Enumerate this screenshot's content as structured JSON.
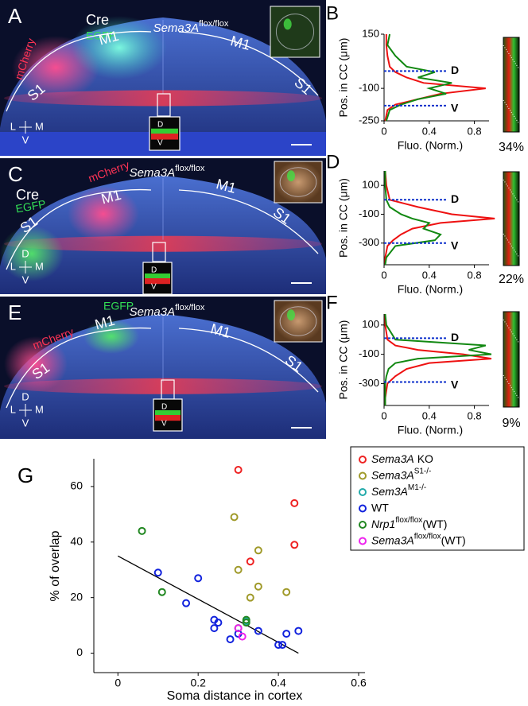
{
  "micrographs": [
    {
      "letter": "A",
      "title": "Sema3A",
      "title_sup": "flox/flox",
      "labels": [
        {
          "text": "mCherry",
          "color": "#ff3355"
        },
        {
          "text": "Cre",
          "color": "#ffffff"
        },
        {
          "text": "EGFP",
          "color": "#33dd55"
        },
        {
          "text": "S1",
          "color": "#ffffff"
        },
        {
          "text": "M1",
          "color": "#ffffff"
        },
        {
          "text": "M1",
          "color": "#ffffff"
        },
        {
          "text": "S1",
          "color": "#ffffff"
        }
      ],
      "inset": [
        "D",
        "V"
      ],
      "orientation": [
        "L",
        "M",
        "V"
      ]
    },
    {
      "letter": "C",
      "title": "Sema3A",
      "title_sup": "flox/flox",
      "labels": [
        {
          "text": "Cre",
          "color": "#ffffff"
        },
        {
          "text": "EGFP",
          "color": "#33dd55"
        },
        {
          "text": "S1",
          "color": "#ffffff"
        },
        {
          "text": "mCherry",
          "color": "#ff3355"
        },
        {
          "text": "M1",
          "color": "#ffffff"
        },
        {
          "text": "M1",
          "color": "#ffffff"
        },
        {
          "text": "S1",
          "color": "#ffffff"
        }
      ],
      "inset": [
        "D",
        "V"
      ],
      "orientation": [
        "D",
        "L",
        "M",
        "V"
      ]
    },
    {
      "letter": "E",
      "title": "Sema3A",
      "title_sup": "flox/flox",
      "labels": [
        {
          "text": "EGFP",
          "color": "#33dd55"
        },
        {
          "text": "M1",
          "color": "#ffffff"
        },
        {
          "text": "mCherry",
          "color": "#ff3355"
        },
        {
          "text": "S1",
          "color": "#ffffff"
        },
        {
          "text": "M1",
          "color": "#ffffff"
        },
        {
          "text": "S1",
          "color": "#ffffff"
        }
      ],
      "inset": [
        "D",
        "V"
      ],
      "orientation": [
        "D",
        "L",
        "M",
        "V"
      ]
    }
  ],
  "chart_data": [
    {
      "type": "profile",
      "letter": "B",
      "y_label": "Pos. in CC (μm)",
      "x_label": "Fluo. (Norm.)",
      "strip_label": "34%",
      "xlim": [
        0,
        1
      ],
      "xticks": [
        0,
        0.4,
        0.8
      ],
      "ylim": [
        -250,
        150
      ],
      "yticks": [
        150,
        -100,
        -250
      ],
      "positions": [
        150,
        100,
        50,
        0,
        -25,
        -50,
        -75,
        -100,
        -125,
        -150,
        -175,
        -200,
        -250
      ],
      "series": [
        {
          "color": "#ee1111",
          "values": [
            0.02,
            0.02,
            0.03,
            0.05,
            0.1,
            0.2,
            0.35,
            0.9,
            0.5,
            0.3,
            0.1,
            0.03,
            0.01
          ]
        },
        {
          "color": "#118811",
          "values": [
            0.05,
            0.03,
            0.1,
            0.2,
            0.45,
            0.3,
            0.6,
            0.4,
            0.55,
            0.3,
            0.15,
            0.05,
            0.02
          ]
        }
      ],
      "reference_lines": [
        {
          "label": "D",
          "value": -20
        },
        {
          "label": "V",
          "value": -180
        }
      ]
    },
    {
      "type": "profile",
      "letter": "D",
      "y_label": "Pos. in CC (μm)",
      "x_label": "Fluo. (Norm.)",
      "strip_label": "22%",
      "xlim": [
        0,
        1
      ],
      "xticks": [
        0,
        0.4,
        0.8
      ],
      "ylim": [
        -450,
        200
      ],
      "yticks": [
        100,
        -100,
        -300
      ],
      "positions": [
        200,
        100,
        0,
        -50,
        -100,
        -130,
        -160,
        -200,
        -240,
        -280,
        -320,
        -400,
        -450
      ],
      "series": [
        {
          "color": "#ee1111",
          "values": [
            0.01,
            0.02,
            0.05,
            0.3,
            0.6,
            0.98,
            0.5,
            0.25,
            0.15,
            0.08,
            0.03,
            0.01,
            0.01
          ]
        },
        {
          "color": "#118811",
          "values": [
            0.01,
            0.01,
            0.02,
            0.05,
            0.15,
            0.25,
            0.4,
            0.35,
            0.5,
            0.45,
            0.1,
            0.02,
            0.01
          ]
        }
      ],
      "reference_lines": [
        {
          "label": "D",
          "value": 0
        },
        {
          "label": "V",
          "value": -300
        }
      ]
    },
    {
      "type": "profile",
      "letter": "F",
      "y_label": "Pos. in CC (μm)",
      "x_label": "Fluo. (Norm.)",
      "strip_label": "9%",
      "xlim": [
        0,
        1
      ],
      "xticks": [
        0,
        0.4,
        0.8
      ],
      "ylim": [
        -450,
        175
      ],
      "yticks": [
        100,
        -100,
        -300
      ],
      "positions": [
        175,
        100,
        0,
        -40,
        -70,
        -100,
        -130,
        -160,
        -200,
        -250,
        -300,
        -400,
        -450
      ],
      "series": [
        {
          "color": "#ee1111",
          "values": [
            0.01,
            0.01,
            0.03,
            0.1,
            0.3,
            0.7,
            0.95,
            0.4,
            0.2,
            0.1,
            0.03,
            0.01,
            0.01
          ]
        },
        {
          "color": "#118811",
          "values": [
            0.01,
            0.02,
            0.1,
            0.9,
            0.75,
            0.95,
            0.3,
            0.1,
            0.04,
            0.02,
            0.01,
            0.01,
            0.01
          ]
        }
      ],
      "reference_lines": [
        {
          "label": "D",
          "value": 10
        },
        {
          "label": "V",
          "value": -290
        }
      ]
    },
    {
      "type": "scatter",
      "letter": "G",
      "x_label": "Soma distance in cortex",
      "y_label": "% of overlap",
      "xlim": [
        -0.06,
        0.6
      ],
      "xticks": [
        0,
        0.2,
        0.4,
        0.6
      ],
      "ylim": [
        -7,
        70
      ],
      "yticks": [
        0,
        20,
        40,
        60
      ],
      "trend_line": {
        "x": [
          0,
          0.45
        ],
        "y": [
          35,
          0
        ]
      },
      "series": [
        {
          "name": "Sema3A",
          "suffix": "KO",
          "italic": true,
          "color": "#ee2222",
          "x": [
            0.3,
            0.44,
            0.44,
            0.33
          ],
          "y": [
            66,
            54,
            39,
            33
          ]
        },
        {
          "name": "Sema3A",
          "sup": "S1-/-",
          "italic": true,
          "color": "#a09a2a",
          "x": [
            0.29,
            0.35,
            0.3,
            0.35,
            0.42,
            0.33
          ],
          "y": [
            49,
            37,
            30,
            24,
            22,
            20
          ]
        },
        {
          "name": "Sem3A",
          "sup": "M1-/-",
          "italic": true,
          "color": "#22aaaa",
          "x": [
            0.32
          ],
          "y": [
            11.5
          ]
        },
        {
          "name": "WT",
          "italic": false,
          "color": "#1122dd",
          "x": [
            0.1,
            0.2,
            0.17,
            0.24,
            0.25,
            0.24,
            0.28,
            0.3,
            0.35,
            0.4,
            0.41,
            0.42,
            0.45
          ],
          "y": [
            29,
            27,
            18,
            12,
            11,
            9,
            5,
            7,
            8,
            3,
            3,
            7,
            8
          ]
        },
        {
          "name": "Nrp1",
          "sup": "flox/flox",
          "suffix": "(WT)",
          "italic": true,
          "color": "#228822",
          "x": [
            0.06,
            0.11,
            0.32,
            0.32,
            0.3
          ],
          "y": [
            44,
            22,
            12,
            11,
            9
          ]
        },
        {
          "name": "Sema3A",
          "sup": "flox/flox",
          "suffix": "(WT)",
          "italic": true,
          "color": "#ee22ee",
          "x": [
            0.3,
            0.31
          ],
          "y": [
            9,
            6
          ]
        }
      ]
    }
  ]
}
